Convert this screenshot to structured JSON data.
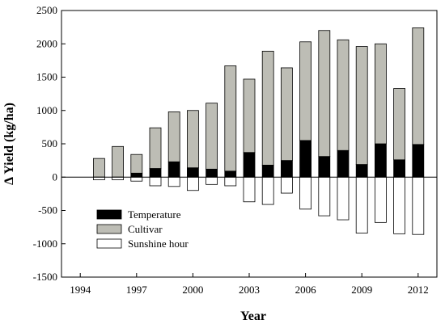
{
  "chart_data": {
    "type": "bar",
    "stacking": "stacked (positive above zero, negative below zero)",
    "xlabel": "Year",
    "ylabel": "Δ Yield (kg/ha)",
    "ylim": [
      -1500,
      2500
    ],
    "yticks": [
      -1500,
      -1000,
      -500,
      0,
      500,
      1000,
      1500,
      2000,
      2500
    ],
    "xlim": [
      1993,
      2013
    ],
    "xticks": [
      1994,
      1997,
      2000,
      2003,
      2006,
      2009,
      2012
    ],
    "grid": false,
    "legend_position": "lower-left",
    "x": [
      1995,
      1996,
      1997,
      1998,
      1999,
      2000,
      2001,
      2002,
      2003,
      2004,
      2005,
      2006,
      2007,
      2008,
      2009,
      2010,
      2011,
      2012
    ],
    "series": [
      {
        "name": "Temperature",
        "color": "#000000",
        "values": [
          0,
          0,
          60,
          130,
          230,
          140,
          120,
          90,
          370,
          180,
          250,
          550,
          310,
          400,
          190,
          500,
          260,
          490
        ]
      },
      {
        "name": "Cultivar",
        "color": "#bdbdb5",
        "values": [
          280,
          460,
          280,
          610,
          750,
          860,
          990,
          1580,
          1100,
          1710,
          1390,
          1480,
          1890,
          1660,
          1770,
          1500,
          1070,
          1750
        ]
      },
      {
        "name": "Sunshine hour",
        "color": "#ffffff",
        "values": [
          -40,
          -40,
          -60,
          -130,
          -140,
          -200,
          -110,
          -130,
          -370,
          -410,
          -240,
          -480,
          -580,
          -640,
          -840,
          -680,
          -850,
          -860
        ]
      }
    ]
  }
}
